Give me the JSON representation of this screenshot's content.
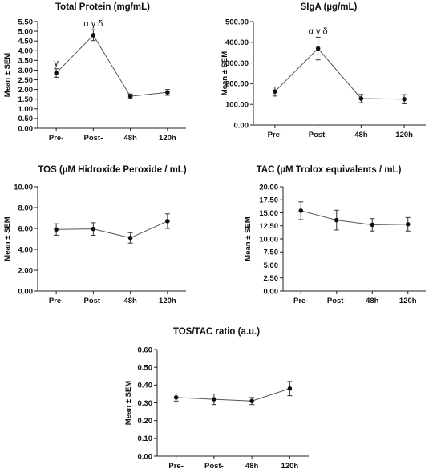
{
  "chart_data": [
    {
      "type": "line",
      "title": "Total Protein (mg/mL)",
      "ylabel": "Mean ± SEM",
      "categories": [
        "Pre-",
        "Post-",
        "48h",
        "120h"
      ],
      "values": [
        2.85,
        4.8,
        1.65,
        1.85
      ],
      "errors": [
        0.22,
        0.28,
        0.12,
        0.15
      ],
      "annotations": [
        "γ",
        "α γ δ",
        "",
        ""
      ],
      "ylim": [
        0,
        5.5
      ],
      "yticks": [
        "0.00",
        "0.50",
        "1.00",
        "1.50",
        "2.00",
        "2.50",
        "3.00",
        "3.50",
        "4.00",
        "4.50",
        "5.00",
        "5.50"
      ]
    },
    {
      "type": "line",
      "title": "SIgA (µg/mL)",
      "ylabel": "Mean ± SEM",
      "categories": [
        "Pre-",
        "Post-",
        "48h",
        "120h"
      ],
      "values": [
        162,
        370,
        128,
        125
      ],
      "errors": [
        22,
        55,
        20,
        22
      ],
      "annotations": [
        "",
        "α γ δ",
        "",
        ""
      ],
      "ylim": [
        0,
        500
      ],
      "yticks": [
        "0.00",
        "100.00",
        "200.00",
        "300.00",
        "400.00",
        "500.00"
      ]
    },
    {
      "type": "line",
      "title": "TOS (µM Hidroxide Peroxide / mL)",
      "ylabel": "Mean ± SEM",
      "categories": [
        "Pre-",
        "Post-",
        "48h",
        "120h"
      ],
      "values": [
        5.9,
        5.95,
        5.1,
        6.7
      ],
      "errors": [
        0.55,
        0.6,
        0.5,
        0.7
      ],
      "annotations": [
        "",
        "",
        "",
        ""
      ],
      "ylim": [
        0,
        10
      ],
      "yticks": [
        "0.00",
        "2.00",
        "4.00",
        "6.00",
        "8.00",
        "10.00"
      ]
    },
    {
      "type": "line",
      "title": "TAC (µM Trolox equivalents / mL)",
      "ylabel": "Mean ± SEM",
      "categories": [
        "Pre-",
        "Post-",
        "48h",
        "120h"
      ],
      "values": [
        15.4,
        13.6,
        12.7,
        12.8
      ],
      "errors": [
        1.7,
        1.9,
        1.2,
        1.3
      ],
      "annotations": [
        "",
        "",
        "",
        ""
      ],
      "ylim": [
        0,
        20
      ],
      "yticks": [
        "0.00",
        "2.50",
        "5.00",
        "7.50",
        "10.00",
        "12.50",
        "15.00",
        "17.50",
        "20.00"
      ]
    },
    {
      "type": "line",
      "title": "TOS/TAC ratio (a.u.)",
      "ylabel": "Mean ± SEM",
      "categories": [
        "Pre-",
        "Post-",
        "48h",
        "120h"
      ],
      "values": [
        0.33,
        0.32,
        0.31,
        0.38
      ],
      "errors": [
        0.02,
        0.03,
        0.02,
        0.04
      ],
      "annotations": [
        "",
        "",
        "",
        ""
      ],
      "ylim": [
        0,
        0.6
      ],
      "yticks": [
        "0.00",
        "0.10",
        "0.20",
        "0.30",
        "0.40",
        "0.50",
        "0.60"
      ]
    }
  ]
}
